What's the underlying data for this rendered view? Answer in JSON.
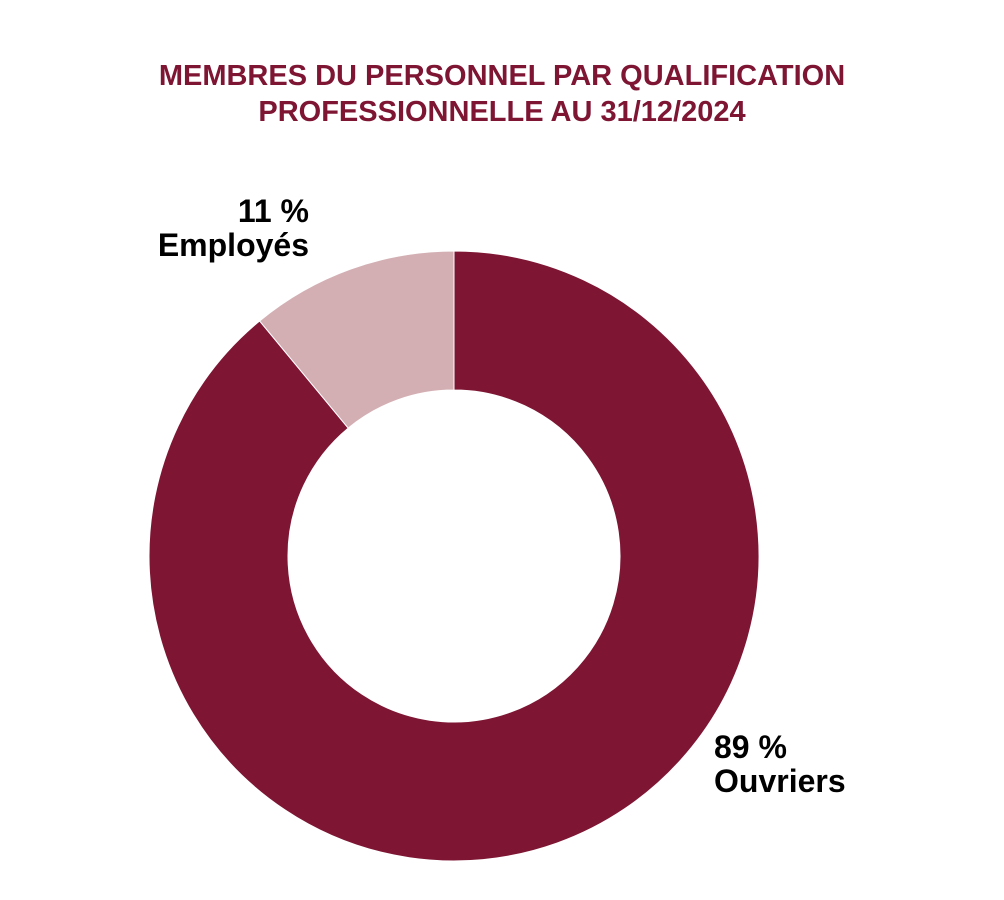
{
  "chart_data": {
    "type": "pie",
    "title_lines": [
      "MEMBRES DU PERSONNEL PAR QUALIFICATION",
      "PROFESSIONNELLE AU 31/12/2024"
    ],
    "donut": true,
    "start_angle_deg": 0,
    "direction": "clockwise",
    "slices": [
      {
        "name": "Ouvriers",
        "value": 89,
        "value_label": "89 %",
        "color": "#7d1533"
      },
      {
        "name": "Employés",
        "value": 11,
        "value_label": "11 %",
        "color": "#d3afb3"
      }
    ]
  }
}
